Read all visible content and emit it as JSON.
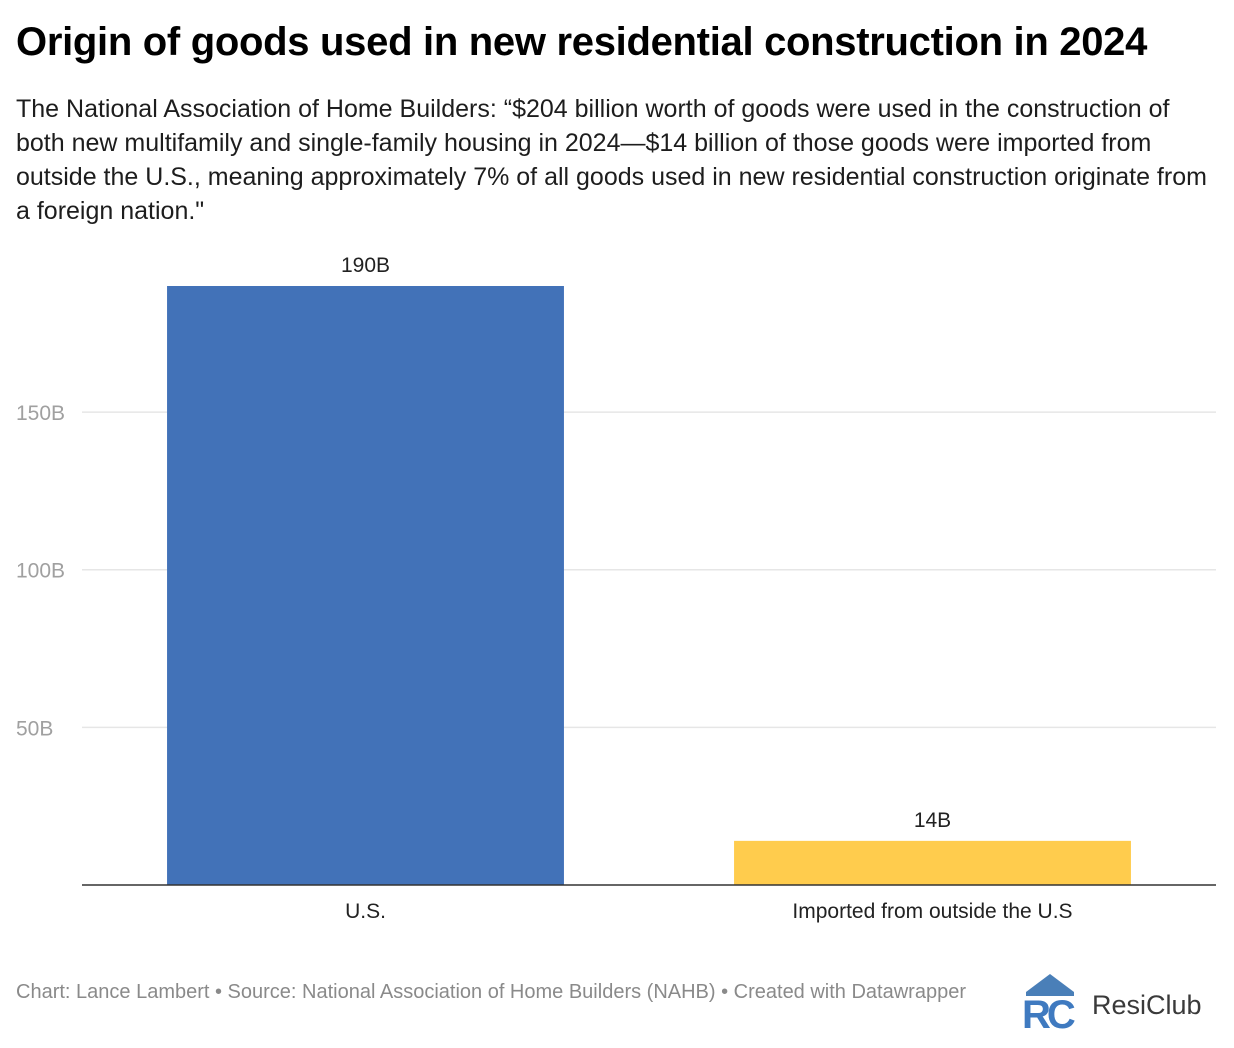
{
  "title": "Origin of goods used in new residential construction in 2024",
  "subtitle": "The National Association of Home Builders: “$204 billion worth of goods were used in the construction of both new multifamily and single-family housing in 2024—$14 billion of those goods were imported from outside the U.S., meaning approximately 7% of all goods used in new residential construction originate from a foreign nation.\"",
  "footer": "Chart: Lance Lambert • Source: National Association of Home Builders (NAHB) • Created with Datawrapper",
  "logo": {
    "text": "ResiClub",
    "mark": "RC",
    "icon": "resiclub-logo-icon"
  },
  "colors": {
    "us": "#4272b8",
    "imported": "#ffcc4d",
    "grid": "#e6e6e6",
    "axis": "#333333",
    "tick": "#a0a0a0"
  },
  "chart_data": {
    "type": "bar",
    "categories": [
      "U.S.",
      "Imported from outside the U.S"
    ],
    "values": [
      190,
      14
    ],
    "value_labels": [
      "190B",
      "14B"
    ],
    "yticks": [
      50,
      100,
      150
    ],
    "ytick_labels": [
      "50B",
      "100B",
      "150B"
    ],
    "ylim": [
      0,
      190
    ],
    "grid": true,
    "legend": "none"
  }
}
